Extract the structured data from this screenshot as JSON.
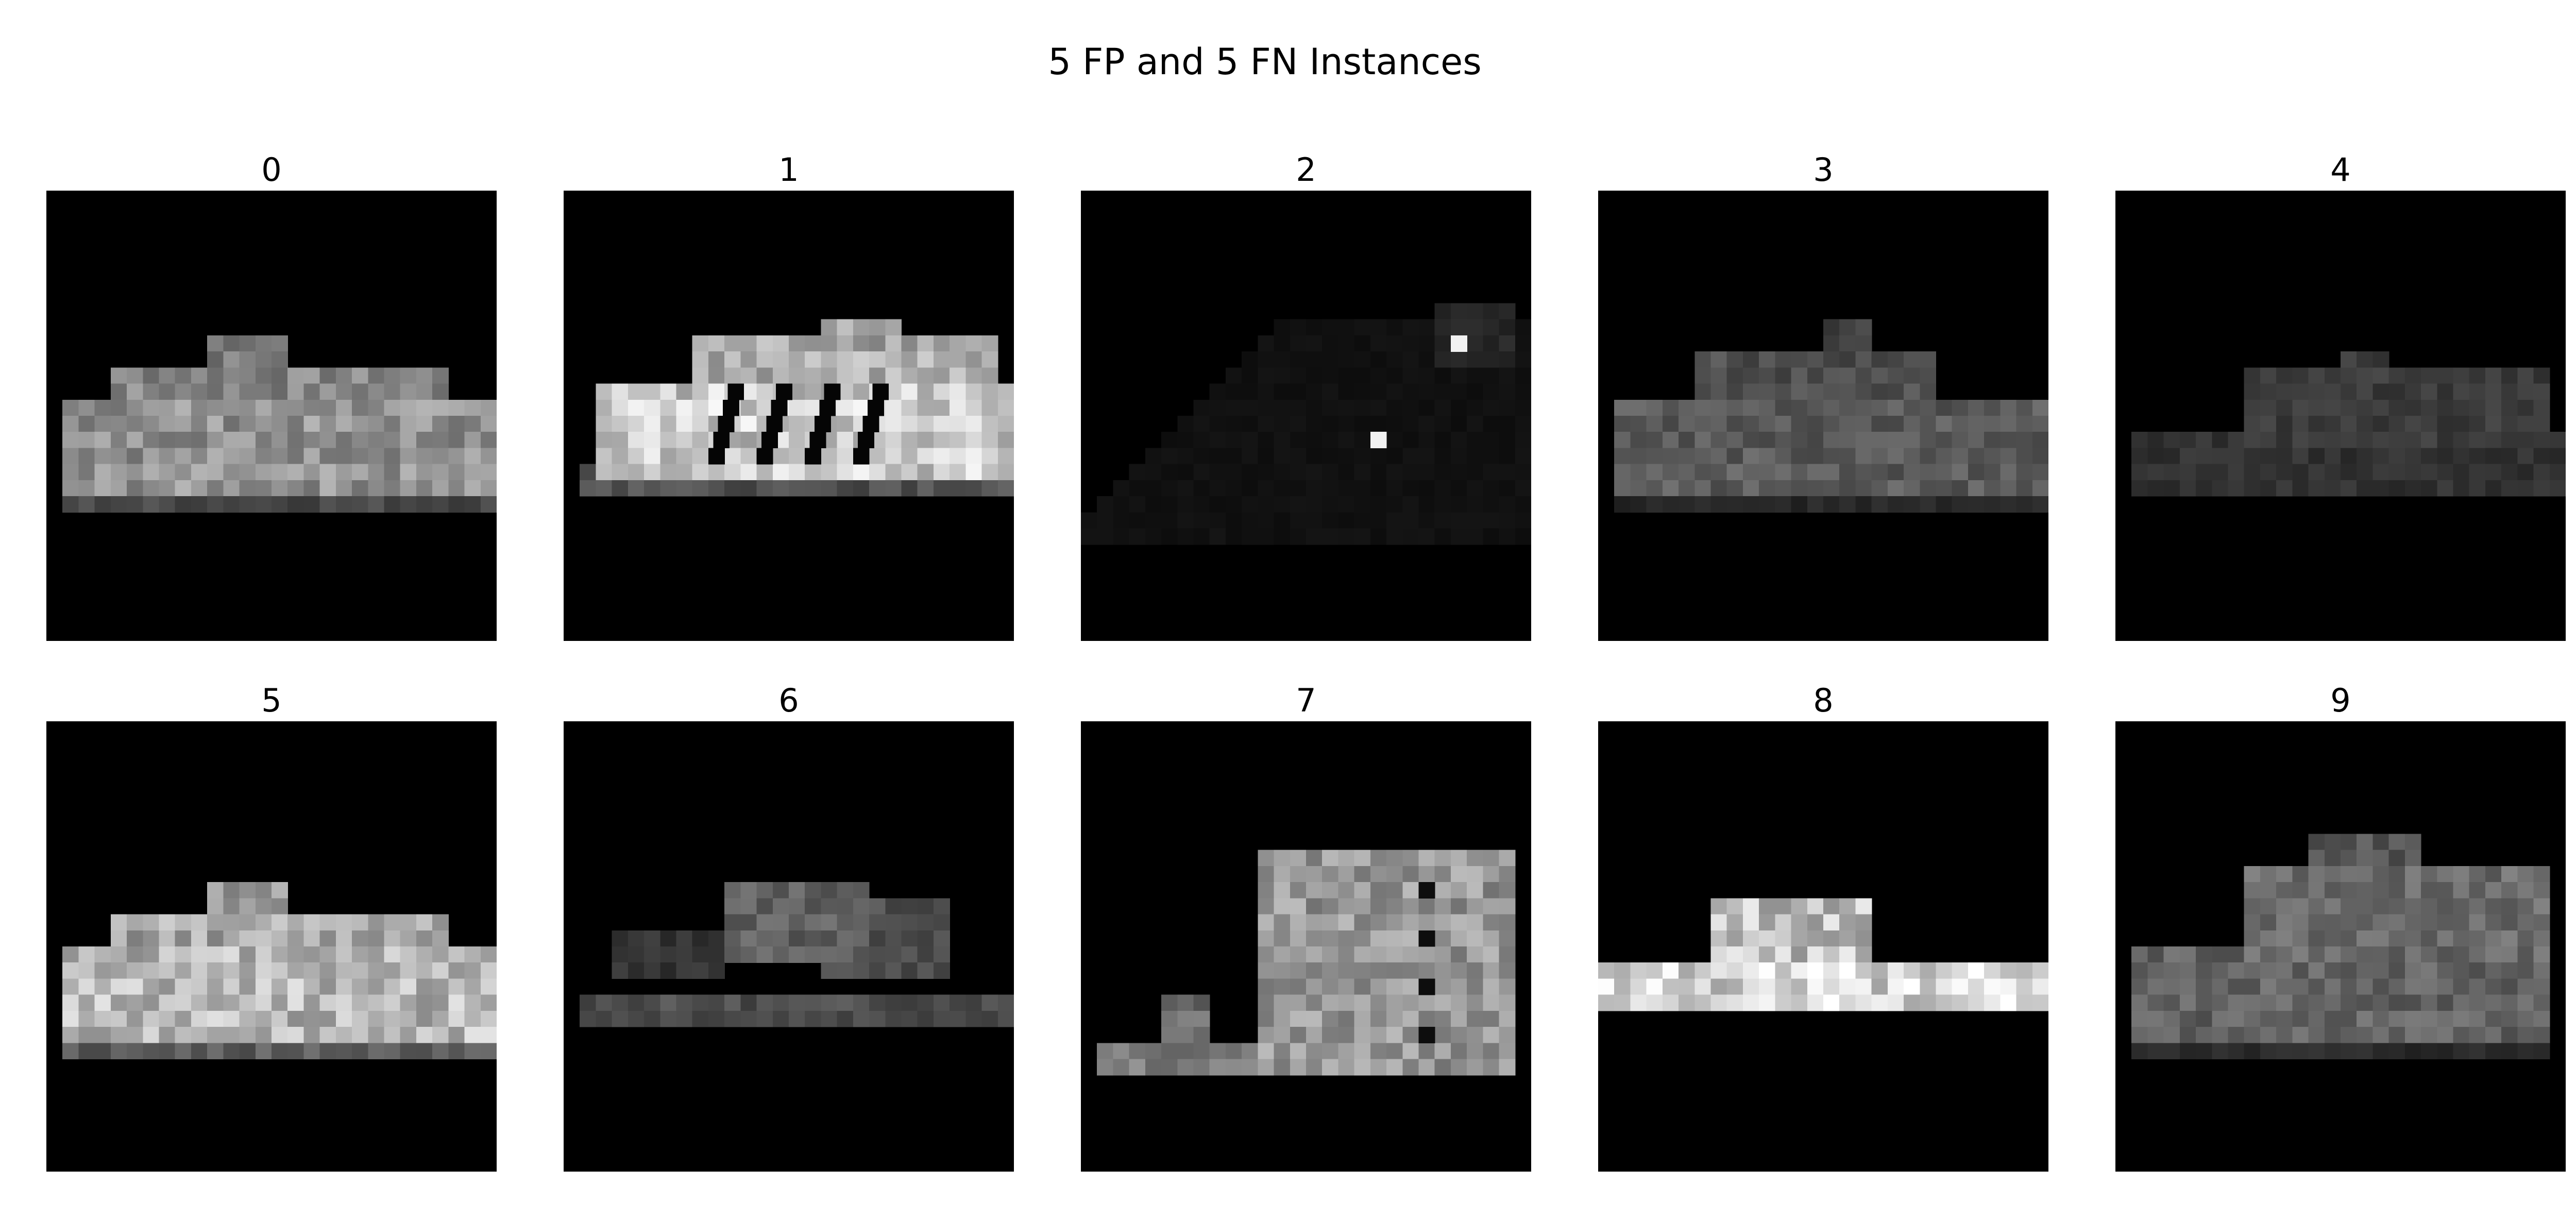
{
  "figure": {
    "title": "5 FP and 5 FN Instances",
    "background": "#ffffff"
  },
  "panels": [
    {
      "title": "0",
      "shape": "low-sneaker-solid",
      "brightness": 0.62
    },
    {
      "title": "1",
      "shape": "striped-sneaker",
      "brightness": 0.85
    },
    {
      "title": "2",
      "shape": "dark-angled-shoe",
      "brightness": 0.2
    },
    {
      "title": "3",
      "shape": "open-sneaker",
      "brightness": 0.55
    },
    {
      "title": "4",
      "shape": "dark-laced-sneaker",
      "brightness": 0.42
    },
    {
      "title": "5",
      "shape": "bright-sneaker",
      "brightness": 0.78
    },
    {
      "title": "6",
      "shape": "sandal-straps",
      "brightness": 0.55
    },
    {
      "title": "7",
      "shape": "tall-sandal",
      "brightness": 0.75
    },
    {
      "title": "8",
      "shape": "flip-flop",
      "brightness": 0.9
    },
    {
      "title": "9",
      "shape": "strappy-sneaker",
      "brightness": 0.6
    }
  ],
  "image_style": {
    "colormap": "gray",
    "axes": "off"
  }
}
